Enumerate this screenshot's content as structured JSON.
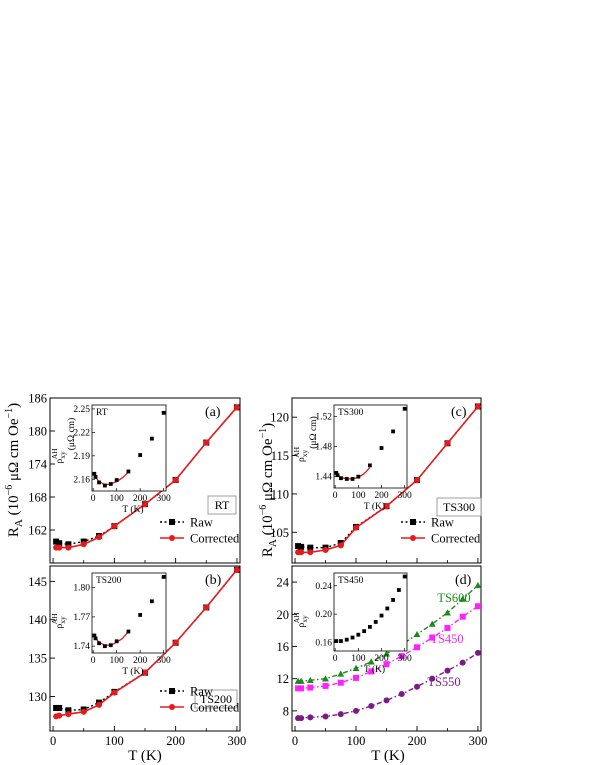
{
  "chart_data": [
    {
      "id": "a",
      "type": "line",
      "panel_label": "(a)",
      "sample_label": "RT",
      "x": [
        5,
        10,
        25,
        50,
        75,
        100,
        150,
        200,
        250,
        300
      ],
      "series": [
        {
          "name": "Raw",
          "color": "#000000",
          "marker": "square",
          "line": "dotted",
          "values": [
            159.9,
            159.6,
            159.4,
            159.9,
            160.9,
            162.7,
            166.7,
            171.1,
            177.9,
            184.3
          ]
        },
        {
          "name": "Corrected",
          "color": "#e8191b",
          "marker": "circle",
          "line": "solid",
          "values": [
            158.8,
            158.8,
            158.8,
            159.4,
            160.7,
            162.7,
            166.7,
            171.1,
            177.9,
            184.3
          ]
        }
      ],
      "xlim": [
        -5,
        305
      ],
      "ylim": [
        156,
        186
      ],
      "yticks": [
        162,
        168,
        174,
        180,
        186
      ],
      "legend_position": "lower-right",
      "inset": {
        "title": "RT",
        "xlabel": "T    (K)",
        "ylabel_main": "ρ",
        "ylabel_sub": "xy",
        "ylabel_sup": "AH",
        "ylabel_unit": "(μΩ cm)",
        "xlim": [
          -5,
          310
        ],
        "ylim": [
          2.145,
          2.255
        ],
        "xticks": [
          0,
          100,
          200,
          300
        ],
        "yticks": [
          2.16,
          2.19,
          2.22,
          2.25
        ],
        "x": [
          5,
          10,
          25,
          50,
          75,
          100,
          150,
          200,
          250,
          300
        ],
        "values": [
          2.167,
          2.163,
          2.156,
          2.152,
          2.154,
          2.159,
          2.17,
          2.191,
          2.212,
          2.245
        ],
        "fit": [
          [
            5,
            2.165
          ],
          [
            25,
            2.157
          ],
          [
            50,
            2.153
          ],
          [
            75,
            2.154
          ],
          [
            100,
            2.157
          ],
          [
            125,
            2.162
          ],
          [
            150,
            2.169
          ]
        ]
      }
    },
    {
      "id": "b",
      "type": "line",
      "panel_label": "(b)",
      "sample_label": "TS200",
      "x": [
        5,
        10,
        25,
        50,
        75,
        100,
        150,
        200,
        250,
        300
      ],
      "series": [
        {
          "name": "Raw",
          "color": "#000000",
          "marker": "square",
          "line": "dotted",
          "values": [
            128.5,
            128.5,
            128.2,
            128.3,
            129.2,
            130.6,
            133.1,
            137.0,
            141.6,
            146.5
          ]
        },
        {
          "name": "Corrected",
          "color": "#e8191b",
          "marker": "circle",
          "line": "solid",
          "values": [
            127.4,
            127.5,
            127.7,
            128.0,
            128.9,
            130.5,
            133.1,
            137.0,
            141.6,
            146.5
          ]
        }
      ],
      "xlim": [
        -5,
        305
      ],
      "ylim": [
        125.5,
        147
      ],
      "xticks": [
        0,
        100,
        200,
        300
      ],
      "yticks": [
        130,
        135,
        140,
        145
      ],
      "legend_position": "lower-right",
      "inset": {
        "title": "TS200",
        "xlabel": "T    (K)",
        "ylabel_main": "ρ",
        "ylabel_sub": "xy",
        "ylabel_sup": "AH",
        "ylabel_unit": "",
        "xlim": [
          -5,
          310
        ],
        "ylim": [
          1.733,
          1.815
        ],
        "xticks": [
          0,
          100,
          200,
          300
        ],
        "yticks": [
          1.74,
          1.77,
          1.8
        ],
        "x": [
          5,
          10,
          25,
          50,
          75,
          100,
          150,
          200,
          250,
          300
        ],
        "values": [
          1.751,
          1.748,
          1.743,
          1.74,
          1.741,
          1.745,
          1.755,
          1.772,
          1.786,
          1.811
        ],
        "fit": [
          [
            5,
            1.75
          ],
          [
            25,
            1.744
          ],
          [
            50,
            1.741
          ],
          [
            75,
            1.741
          ],
          [
            100,
            1.744
          ],
          [
            125,
            1.748
          ],
          [
            150,
            1.755
          ]
        ]
      }
    },
    {
      "id": "c",
      "type": "line",
      "panel_label": "(c)",
      "sample_label": "TS300",
      "x": [
        5,
        10,
        25,
        50,
        75,
        100,
        150,
        200,
        250,
        300
      ],
      "series": [
        {
          "name": "Raw",
          "color": "#000000",
          "marker": "square",
          "line": "dotted",
          "values": [
            103.2,
            103.1,
            103.0,
            103.0,
            103.6,
            105.7,
            108.4,
            111.8,
            116.6,
            121.4
          ]
        },
        {
          "name": "Corrected",
          "color": "#e8191b",
          "marker": "circle",
          "line": "solid",
          "values": [
            102.4,
            102.4,
            102.4,
            102.7,
            103.3,
            105.6,
            108.4,
            111.8,
            116.6,
            121.4
          ]
        }
      ],
      "xlim": [
        -5,
        305
      ],
      "ylim": [
        101,
        122.5
      ],
      "yticks": [
        105,
        110,
        115,
        120
      ],
      "legend_position": "lower-right",
      "inset": {
        "title": "TS300",
        "xlabel": "T    (K)",
        "ylabel_main": "ρ",
        "ylabel_sub": "xy",
        "ylabel_sup": "AH",
        "ylabel_unit": "(μΩ cm)",
        "xlim": [
          -5,
          310
        ],
        "ylim": [
          1.425,
          1.535
        ],
        "xticks": [
          0,
          100,
          200,
          300
        ],
        "yticks": [
          1.44,
          1.48,
          1.52
        ],
        "x": [
          5,
          10,
          25,
          50,
          75,
          100,
          150,
          200,
          250,
          300
        ],
        "values": [
          1.445,
          1.442,
          1.438,
          1.437,
          1.437,
          1.44,
          1.455,
          1.478,
          1.5,
          1.53
        ],
        "fit": [
          [
            5,
            1.444
          ],
          [
            25,
            1.439
          ],
          [
            50,
            1.437
          ],
          [
            75,
            1.437
          ],
          [
            100,
            1.439
          ],
          [
            125,
            1.444
          ],
          [
            150,
            1.452
          ]
        ]
      }
    },
    {
      "id": "d",
      "type": "line",
      "panel_label": "(d)",
      "x": [
        5,
        10,
        25,
        50,
        75,
        100,
        125,
        150,
        175,
        200,
        225,
        250,
        275,
        300
      ],
      "series": [
        {
          "name": "TS600",
          "color": "#1a8a1a",
          "marker": "triangle",
          "line": "dashdot",
          "values": [
            11.7,
            11.7,
            11.8,
            12.0,
            12.6,
            13.3,
            14.1,
            15.1,
            16.2,
            17.5,
            18.8,
            20.2,
            21.9,
            23.6
          ]
        },
        {
          "name": "TS450",
          "color": "#ff22ff",
          "marker": "square",
          "line": "dashdot",
          "values": [
            10.8,
            10.8,
            10.9,
            11.1,
            11.5,
            12.1,
            12.9,
            13.8,
            14.8,
            15.9,
            17.1,
            18.3,
            19.7,
            21.0
          ]
        },
        {
          "name": "TS550",
          "color": "#7b1a86",
          "marker": "circle",
          "line": "dashdot",
          "values": [
            7.1,
            7.1,
            7.2,
            7.3,
            7.6,
            8.0,
            8.6,
            9.3,
            10.1,
            11.0,
            12.0,
            13.0,
            14.0,
            15.2
          ]
        }
      ],
      "xlim": [
        -5,
        305
      ],
      "ylim": [
        5.5,
        26
      ],
      "xticks": [
        0,
        100,
        200,
        300
      ],
      "yticks": [
        8,
        12,
        16,
        20,
        24
      ],
      "inset": {
        "title": "TS450",
        "xlabel": "T    (K)",
        "ylabel_main": "ρ",
        "ylabel_sub": "xy",
        "ylabel_sup": "AH",
        "ylabel_unit": "",
        "xlim": [
          -5,
          310
        ],
        "ylim": [
          0.148,
          0.258
        ],
        "xticks": [
          0,
          100,
          200,
          300
        ],
        "yticks": [
          0.16,
          0.2,
          0.24
        ],
        "x": [
          5,
          25,
          50,
          75,
          100,
          125,
          150,
          175,
          200,
          225,
          250,
          275,
          300
        ],
        "values": [
          0.162,
          0.162,
          0.164,
          0.167,
          0.171,
          0.176,
          0.182,
          0.189,
          0.198,
          0.208,
          0.22,
          0.234,
          0.253
        ]
      }
    }
  ],
  "axes_text": {
    "ylabel_main": "R",
    "ylabel_sub": "A",
    "ylabel_unit": "(10",
    "ylabel_exp": "−6",
    "ylabel_unit2": " μΩ cm Oe",
    "ylabel_exp2": "−1",
    "ylabel_close": ")",
    "xlabel": "T    (K)"
  }
}
